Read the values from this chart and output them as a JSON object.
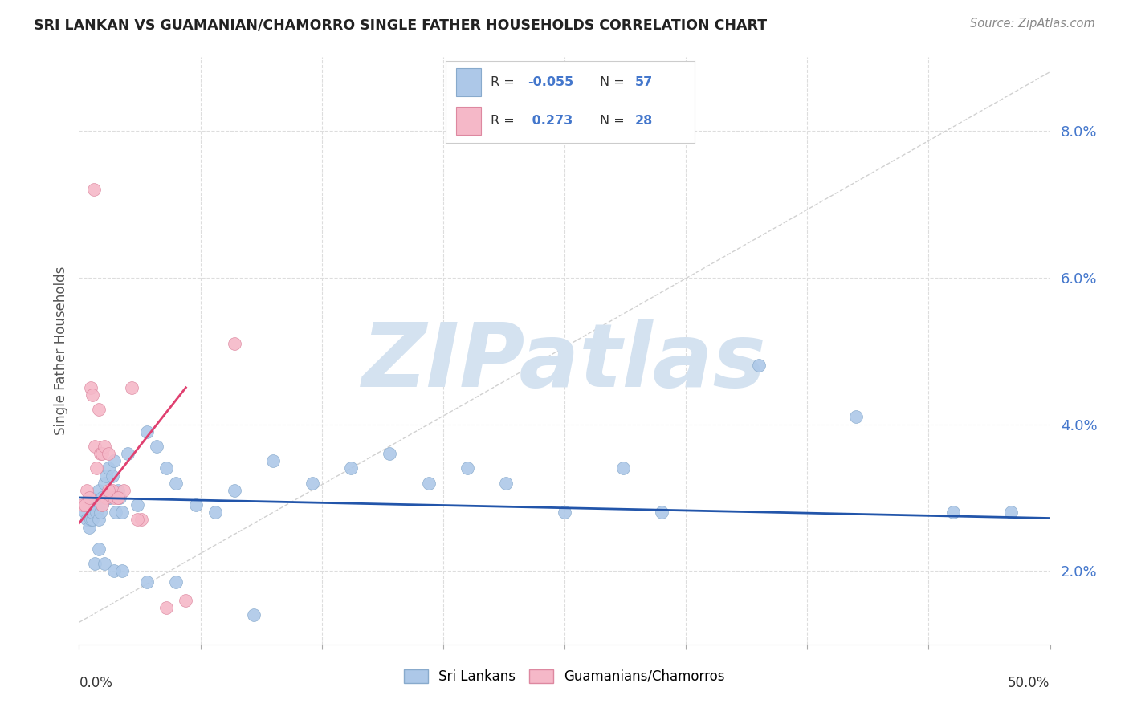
{
  "title": "SRI LANKAN VS GUAMANIAN/CHAMORRO SINGLE FATHER HOUSEHOLDS CORRELATION CHART",
  "source": "Source: ZipAtlas.com",
  "ylabel": "Single Father Households",
  "xlim": [
    0.0,
    50.0
  ],
  "ylim": [
    1.0,
    9.0
  ],
  "yticks": [
    2.0,
    4.0,
    6.0,
    8.0
  ],
  "xticks": [
    0.0,
    6.25,
    12.5,
    18.75,
    25.0,
    31.25,
    37.5,
    43.75,
    50.0
  ],
  "sri_lankan_color": "#adc8e8",
  "guamanian_color": "#f5b8c8",
  "trend_blue": "#2255aa",
  "trend_pink": "#e04070",
  "ref_line_color": "#cccccc",
  "watermark": "ZIPatlas",
  "watermark_color": "#d4e2f0",
  "background": "#ffffff",
  "grid_color": "#dddddd",
  "ytick_color": "#4477cc",
  "legend_r1": "R = -0.055",
  "legend_n1": "N = 57",
  "legend_r2": "R =  0.273",
  "legend_n2": "N = 28",
  "sri_lankans_x": [
    0.3,
    0.4,
    0.5,
    0.5,
    0.6,
    0.6,
    0.7,
    0.7,
    0.8,
    0.9,
    1.0,
    1.0,
    1.1,
    1.2,
    1.2,
    1.3,
    1.4,
    1.5,
    1.5,
    1.6,
    1.7,
    1.8,
    1.9,
    2.0,
    2.1,
    2.2,
    2.5,
    3.0,
    3.5,
    4.0,
    4.5,
    5.0,
    6.0,
    7.0,
    8.0,
    10.0,
    12.0,
    14.0,
    16.0,
    18.0,
    20.0,
    22.0,
    25.0,
    28.0,
    30.0,
    35.0,
    40.0,
    45.0,
    48.0,
    0.8,
    1.0,
    1.3,
    1.8,
    2.2,
    3.5,
    5.0,
    9.0
  ],
  "sri_lankans_y": [
    2.8,
    2.7,
    2.6,
    2.9,
    2.7,
    3.0,
    2.7,
    2.8,
    2.9,
    2.8,
    2.7,
    3.1,
    2.8,
    3.0,
    2.9,
    3.2,
    3.3,
    3.4,
    3.0,
    3.0,
    3.3,
    3.5,
    2.8,
    3.1,
    3.0,
    2.8,
    3.6,
    2.9,
    3.9,
    3.7,
    3.4,
    3.2,
    2.9,
    2.8,
    3.1,
    3.5,
    3.2,
    3.4,
    3.6,
    3.2,
    3.4,
    3.2,
    2.8,
    3.4,
    2.8,
    4.8,
    4.1,
    2.8,
    2.8,
    2.1,
    2.3,
    2.1,
    2.0,
    2.0,
    1.85,
    1.85,
    1.4
  ],
  "guamanians_x": [
    0.2,
    0.3,
    0.4,
    0.5,
    0.6,
    0.7,
    0.8,
    0.9,
    1.0,
    1.1,
    1.2,
    1.3,
    1.4,
    1.5,
    1.6,
    1.7,
    1.8,
    2.0,
    2.3,
    2.7,
    3.2,
    4.5,
    5.5,
    1.2,
    1.5,
    2.0,
    3.0,
    8.0
  ],
  "guamanians_y": [
    2.9,
    2.9,
    3.1,
    3.0,
    4.5,
    4.4,
    3.7,
    3.4,
    4.2,
    3.6,
    3.6,
    3.7,
    3.0,
    3.6,
    3.1,
    3.1,
    3.0,
    3.0,
    3.1,
    4.5,
    2.7,
    1.5,
    1.6,
    2.9,
    3.1,
    3.0,
    2.7,
    5.1
  ],
  "guamanian_outlier_x": 0.75,
  "guamanian_outlier_y": 7.2,
  "blue_trend_x0": 0.0,
  "blue_trend_x1": 50.0,
  "blue_trend_y0": 3.0,
  "blue_trend_y1": 2.72,
  "pink_trend_x0": 0.0,
  "pink_trend_x1": 5.5,
  "pink_trend_y0": 2.65,
  "pink_trend_y1": 4.5,
  "ref_line_x0": 0.0,
  "ref_line_x1": 50.0,
  "ref_line_y0": 1.3,
  "ref_line_y1": 8.8
}
